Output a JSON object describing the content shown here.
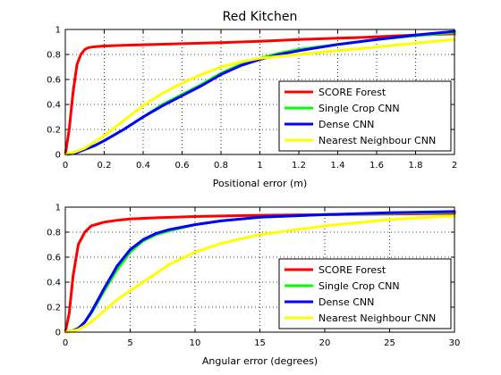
{
  "chart_data": [
    {
      "type": "line",
      "title": "Red Kitchen",
      "xlabel": "Positional error (m)",
      "ylabel": "",
      "xlim": [
        0,
        2
      ],
      "ylim": [
        0,
        1
      ],
      "xticks": [
        "0",
        "0.2",
        "0.4",
        "0.6",
        "0.8",
        "1",
        "1.2",
        "1.4",
        "1.6",
        "1.8",
        "2"
      ],
      "yticks": [
        "0",
        "0.2",
        "0.4",
        "0.6",
        "0.8",
        "1"
      ],
      "grid": true,
      "legend": "bottom-right",
      "series": [
        {
          "name": "SCORE Forest",
          "color": "#ff0000",
          "x": [
            0,
            0.02,
            0.04,
            0.06,
            0.08,
            0.1,
            0.12,
            0.15,
            0.2,
            0.3,
            0.5,
            0.8,
            1.0,
            1.2,
            1.5,
            1.8,
            2.0
          ],
          "y": [
            0,
            0.2,
            0.5,
            0.72,
            0.8,
            0.84,
            0.855,
            0.862,
            0.868,
            0.873,
            0.882,
            0.895,
            0.905,
            0.92,
            0.935,
            0.955,
            0.965
          ]
        },
        {
          "name": "Single Crop CNN",
          "color": "#00ff00",
          "x": [
            0,
            0.05,
            0.1,
            0.15,
            0.2,
            0.3,
            0.4,
            0.5,
            0.6,
            0.7,
            0.8,
            0.9,
            1.0,
            1.1,
            1.2,
            1.4,
            1.6,
            1.8,
            2.0
          ],
          "y": [
            0,
            0.01,
            0.04,
            0.07,
            0.11,
            0.2,
            0.3,
            0.4,
            0.48,
            0.56,
            0.65,
            0.72,
            0.77,
            0.81,
            0.84,
            0.88,
            0.92,
            0.95,
            0.975
          ]
        },
        {
          "name": "Dense CNN",
          "color": "#0000ff",
          "x": [
            0,
            0.05,
            0.1,
            0.15,
            0.2,
            0.3,
            0.4,
            0.5,
            0.6,
            0.7,
            0.8,
            0.9,
            1.0,
            1.1,
            1.2,
            1.4,
            1.6,
            1.8,
            2.0
          ],
          "y": [
            0,
            0.01,
            0.04,
            0.07,
            0.11,
            0.2,
            0.3,
            0.39,
            0.47,
            0.55,
            0.64,
            0.71,
            0.76,
            0.8,
            0.83,
            0.88,
            0.92,
            0.955,
            0.985
          ]
        },
        {
          "name": "Nearest Neighbour CNN",
          "color": "#ffff00",
          "x": [
            0,
            0.05,
            0.1,
            0.15,
            0.2,
            0.3,
            0.4,
            0.5,
            0.6,
            0.7,
            0.8,
            0.9,
            1.0,
            1.2,
            1.4,
            1.6,
            1.8,
            2.0
          ],
          "y": [
            0,
            0.02,
            0.05,
            0.1,
            0.15,
            0.27,
            0.39,
            0.49,
            0.57,
            0.64,
            0.7,
            0.74,
            0.77,
            0.8,
            0.83,
            0.86,
            0.89,
            0.92
          ]
        }
      ]
    },
    {
      "type": "line",
      "title": "",
      "xlabel": "Angular error (degrees)",
      "ylabel": "",
      "xlim": [
        0,
        30
      ],
      "ylim": [
        0,
        1
      ],
      "xticks": [
        "0",
        "5",
        "10",
        "15",
        "20",
        "25",
        "30"
      ],
      "yticks": [
        "0",
        "0.2",
        "0.4",
        "0.6",
        "0.8",
        "1"
      ],
      "grid": true,
      "legend": "bottom-right",
      "series": [
        {
          "name": "SCORE Forest",
          "color": "#ff0000",
          "x": [
            0,
            0.3,
            0.6,
            1,
            1.5,
            2,
            3,
            4,
            5,
            7,
            10,
            15,
            20,
            25,
            30
          ],
          "y": [
            0,
            0.15,
            0.45,
            0.7,
            0.8,
            0.85,
            0.88,
            0.895,
            0.905,
            0.915,
            0.925,
            0.935,
            0.94,
            0.945,
            0.95
          ]
        },
        {
          "name": "Single Crop CNN",
          "color": "#00ff00",
          "x": [
            0,
            0.5,
            1,
            1.5,
            2,
            3,
            4,
            5,
            6,
            7,
            8,
            10,
            12,
            15,
            20,
            25,
            30
          ],
          "y": [
            0,
            0.01,
            0.03,
            0.08,
            0.15,
            0.33,
            0.5,
            0.64,
            0.73,
            0.78,
            0.81,
            0.86,
            0.89,
            0.92,
            0.94,
            0.95,
            0.96
          ]
        },
        {
          "name": "Dense CNN",
          "color": "#0000ff",
          "x": [
            0,
            0.5,
            1,
            1.5,
            2,
            3,
            4,
            5,
            6,
            7,
            8,
            10,
            12,
            15,
            20,
            25,
            30
          ],
          "y": [
            0,
            0.01,
            0.03,
            0.08,
            0.16,
            0.35,
            0.53,
            0.66,
            0.74,
            0.79,
            0.82,
            0.86,
            0.89,
            0.92,
            0.94,
            0.955,
            0.965
          ]
        },
        {
          "name": "Nearest Neighbour CNN",
          "color": "#ffff00",
          "x": [
            0,
            1,
            2,
            3,
            4,
            5,
            6,
            8,
            10,
            12,
            15,
            20,
            25,
            30
          ],
          "y": [
            0,
            0.02,
            0.08,
            0.17,
            0.26,
            0.33,
            0.4,
            0.54,
            0.64,
            0.71,
            0.78,
            0.85,
            0.9,
            0.93
          ]
        }
      ]
    }
  ]
}
